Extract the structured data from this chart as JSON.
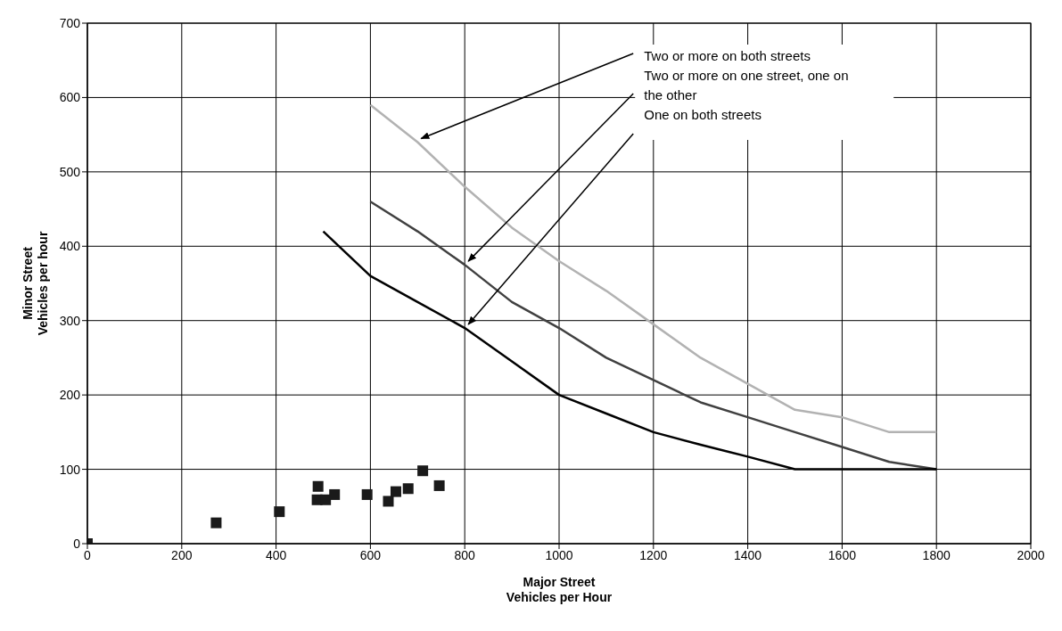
{
  "chart_data": {
    "type": "line",
    "xlabel": "Major Street\nVehicles per Hour",
    "ylabel": "Minor Street\nVehicles per hour",
    "xlim": [
      0,
      2000
    ],
    "xticks": [
      0,
      200,
      400,
      600,
      800,
      1000,
      1200,
      1400,
      1600,
      1800,
      2000
    ],
    "ylim": [
      0,
      700
    ],
    "yticks": [
      0,
      100,
      200,
      300,
      400,
      500,
      600,
      700
    ],
    "grid": true,
    "legend": false,
    "line_style": "solid",
    "series": [
      {
        "name": "Two or more on both streets",
        "color": "#b2b2b2",
        "marker": "none",
        "x": [
          600,
          700,
          800,
          900,
          1000,
          1100,
          1200,
          1300,
          1400,
          1500,
          1600,
          1700,
          1800
        ],
        "values": [
          590,
          540,
          480,
          425,
          380,
          340,
          295,
          250,
          215,
          180,
          170,
          150,
          150
        ]
      },
      {
        "name": "Two or more on one street, one on the other",
        "color": "#404040",
        "marker": "none",
        "x": [
          600,
          700,
          800,
          900,
          1000,
          1100,
          1200,
          1300,
          1400,
          1500,
          1600,
          1700,
          1800
        ],
        "values": [
          460,
          420,
          375,
          325,
          290,
          250,
          220,
          190,
          170,
          150,
          130,
          110,
          100
        ]
      },
      {
        "name": "One on both streets",
        "color": "#000000",
        "marker": "none",
        "x": [
          500,
          600,
          700,
          800,
          900,
          1000,
          1100,
          1200,
          1300,
          1400,
          1500,
          1800
        ],
        "values": [
          420,
          360,
          325,
          290,
          245,
          200,
          175,
          150,
          133,
          117,
          100,
          100
        ]
      },
      {
        "color": "#1a1a1a",
        "type": "scatter",
        "marker": "square",
        "x": [
          0,
          273,
          407,
          487,
          489,
          505,
          524,
          593,
          638,
          654,
          680,
          711,
          746
        ],
        "values": [
          0,
          28,
          43,
          59,
          77,
          59,
          66,
          66,
          57,
          70,
          74,
          98,
          78
        ]
      }
    ]
  }
}
